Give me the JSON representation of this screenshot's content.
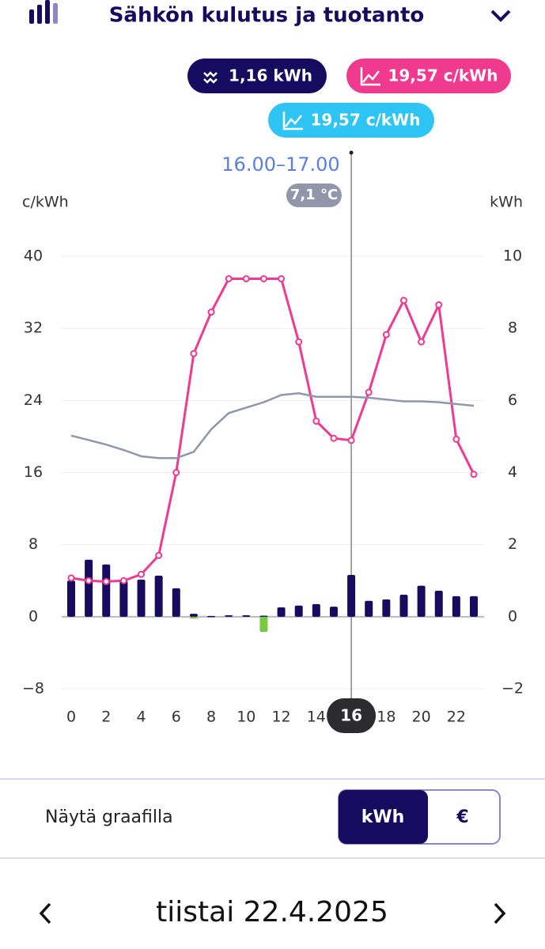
{
  "header": {
    "title": "Sähkön kulutus ja tuotanto"
  },
  "badges": {
    "consumption": "1,16 kWh",
    "price": "19,57 c/kWh",
    "price_alt": "19,57 c/kWh"
  },
  "chart_data": {
    "type": "bar",
    "time_label": "16.00–17.00",
    "temperature": "7,1 °C",
    "ylabel": "c/kWh",
    "y2label": "kWh",
    "x": [
      0,
      1,
      2,
      3,
      4,
      5,
      6,
      7,
      8,
      9,
      10,
      11,
      12,
      13,
      14,
      15,
      16,
      17,
      18,
      19,
      20,
      21,
      22,
      23
    ],
    "xlim": [
      0,
      23
    ],
    "xticks": [
      0,
      2,
      4,
      6,
      8,
      10,
      12,
      14,
      18,
      20,
      22
    ],
    "selected_hour": 16,
    "ylim": [
      -8,
      40
    ],
    "yticks": [
      40,
      32,
      24,
      16,
      8,
      0,
      {
        "value": -8,
        "label": "−8"
      }
    ],
    "y2lim": [
      -2,
      10
    ],
    "y2ticks": [
      10,
      8,
      6,
      4,
      2,
      0,
      {
        "value": -2,
        "label": "−2"
      }
    ],
    "grid": true,
    "series": [
      {
        "name": "consumption",
        "type": "bar",
        "axis": "y2",
        "color": "#160b5e",
        "values": [
          1.0,
          1.58,
          1.45,
          1.0,
          1.03,
          1.14,
          0.79,
          0.08,
          0.02,
          0.04,
          0.04,
          0.03,
          0.26,
          0.31,
          0.35,
          0.28,
          1.16,
          0.44,
          0.48,
          0.61,
          0.86,
          0.72,
          0.57,
          0.57
        ]
      },
      {
        "name": "production",
        "type": "bar",
        "axis": "y2",
        "color": "#7bc943",
        "values": [
          0,
          0,
          0,
          0,
          0,
          0,
          0,
          -0.05,
          0,
          0,
          0,
          -0.42,
          0,
          0,
          0,
          0,
          0,
          0,
          0,
          0,
          0,
          0,
          0,
          0
        ]
      },
      {
        "name": "price",
        "type": "line",
        "color": "#ef3a8f",
        "markers": true,
        "values": [
          4.3,
          4.0,
          3.9,
          4.0,
          4.7,
          6.8,
          16.0,
          29.2,
          33.8,
          37.5,
          37.5,
          37.5,
          37.5,
          30.5,
          21.7,
          19.8,
          19.57,
          24.9,
          31.3,
          35.1,
          30.5,
          34.6,
          19.7,
          15.8
        ]
      },
      {
        "name": "reference",
        "type": "line",
        "color": "#9097ab",
        "markers": false,
        "values": [
          20.1,
          19.6,
          19.1,
          18.5,
          17.8,
          17.6,
          17.6,
          18.3,
          20.8,
          22.6,
          23.2,
          23.8,
          24.6,
          24.8,
          24.4,
          24.4,
          24.4,
          24.3,
          24.1,
          23.9,
          23.9,
          23.8,
          23.6,
          23.4
        ]
      }
    ]
  },
  "toggle": {
    "label": "Näytä graafilla",
    "options": [
      "kWh",
      "€"
    ]
  },
  "footer": {
    "date": "tiistai 22.4.2025"
  }
}
